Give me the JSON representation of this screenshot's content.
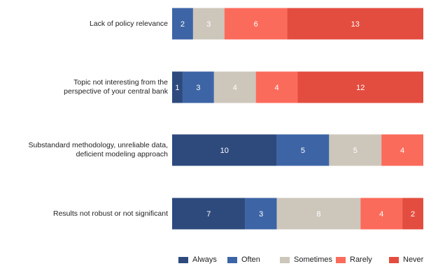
{
  "chart_data": {
    "type": "bar",
    "orientation": "horizontal",
    "stacked": true,
    "categories": [
      "Lack of policy relevance",
      "Topic not interesting from the\nperspective of your central bank",
      "Substandard methodology, unreliable data,\ndeficient modeling approach",
      "Results not robust or not significant"
    ],
    "series": [
      {
        "name": "Always",
        "color": "#2e4a7d",
        "values": [
          0,
          1,
          10,
          7
        ]
      },
      {
        "name": "Often",
        "color": "#3d65a6",
        "values": [
          2,
          3,
          5,
          3
        ]
      },
      {
        "name": "Sometimes",
        "color": "#cdc6bb",
        "values": [
          3,
          4,
          5,
          8
        ]
      },
      {
        "name": "Rarely",
        "color": "#fb6b5b",
        "values": [
          6,
          4,
          4,
          4
        ]
      },
      {
        "name": "Never",
        "color": "#e34d3f",
        "values": [
          13,
          12,
          0,
          2
        ]
      }
    ],
    "xlim": [
      0,
      24
    ],
    "grid": false,
    "legend_position": "bottom"
  }
}
